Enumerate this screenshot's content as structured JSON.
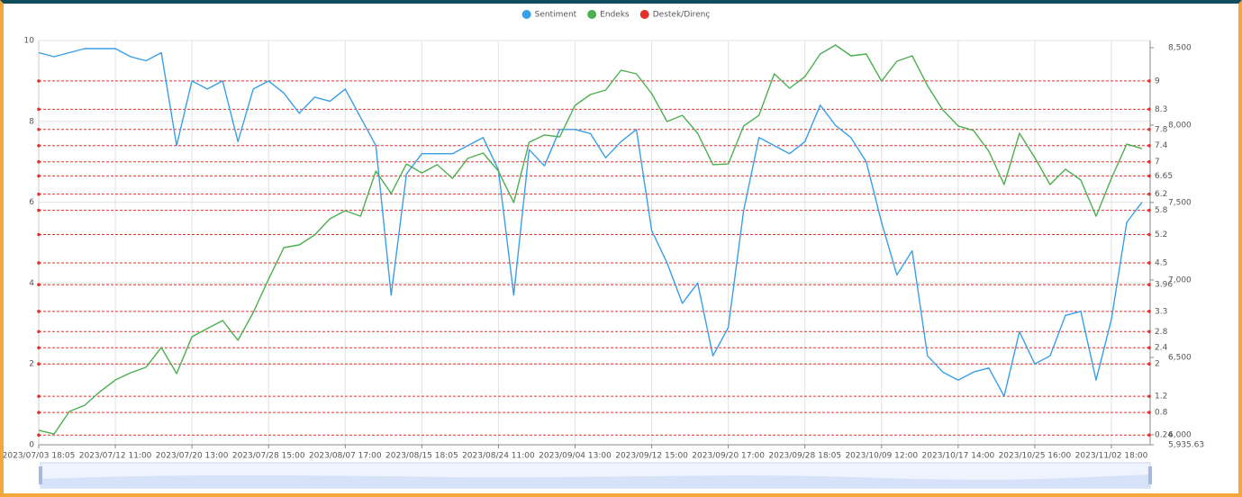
{
  "chart_data": {
    "type": "line",
    "categories": [
      "2023/07/03 18:05",
      null,
      null,
      null,
      null,
      "2023/07/12 11:00",
      null,
      null,
      null,
      null,
      "2023/07/20 13:00",
      null,
      null,
      null,
      null,
      "2023/07/28 15:00",
      null,
      null,
      null,
      null,
      "2023/08/07 17:00",
      null,
      null,
      null,
      null,
      "2023/08/15 18:05",
      null,
      null,
      null,
      null,
      "2023/08/24 11:00",
      null,
      null,
      null,
      null,
      "2023/09/04 13:00",
      null,
      null,
      null,
      null,
      "2023/09/12 15:00",
      null,
      null,
      null,
      null,
      "2023/09/20 17:00",
      null,
      null,
      null,
      null,
      "2023/09/28 18:05",
      null,
      null,
      null,
      null,
      "2023/10/09 12:00",
      null,
      null,
      null,
      null,
      "2023/10/17 14:00",
      null,
      null,
      null,
      null,
      "2023/10/25 16:00",
      null,
      null,
      null,
      null,
      "2023/11/02 18:00",
      null,
      null
    ],
    "series": [
      {
        "name": "Sentiment",
        "color": "#3a9fe6",
        "values": [
          9.7,
          9.6,
          9.7,
          9.8,
          9.8,
          9.8,
          9.6,
          9.5,
          9.7,
          7.4,
          9.0,
          8.8,
          9.0,
          7.5,
          8.8,
          9.0,
          8.7,
          8.2,
          8.6,
          8.5,
          8.8,
          8.1,
          7.4,
          3.7,
          6.7,
          7.2,
          7.2,
          7.2,
          7.4,
          7.6,
          6.8,
          3.7,
          7.3,
          6.9,
          7.8,
          7.8,
          7.7,
          7.1,
          7.5,
          7.8,
          5.3,
          4.5,
          3.5,
          4.0,
          2.2,
          2.9,
          5.8,
          7.6,
          7.4,
          7.2,
          7.5,
          8.4,
          7.9,
          7.6,
          7.0,
          5.5,
          4.2,
          4.8,
          2.2,
          1.8,
          1.6,
          1.8,
          1.9,
          1.2,
          2.8,
          2.0,
          2.2,
          3.2,
          3.3,
          1.6,
          3.1,
          5.5,
          6.0
        ]
      },
      {
        "name": "Endeks",
        "color": "#4caf50",
        "axis": "y2",
        "values": [
          6029,
          6005,
          6151,
          6191,
          6279,
          6354,
          6401,
          6436,
          6564,
          6395,
          6633,
          6686,
          6738,
          6610,
          6790,
          7005,
          7209,
          7226,
          7290,
          7395,
          7447,
          7412,
          7703,
          7558,
          7749,
          7691,
          7744,
          7656,
          7785,
          7819,
          7703,
          7500,
          7889,
          7936,
          7924,
          8127,
          8197,
          8226,
          8354,
          8331,
          8203,
          8023,
          8063,
          7947,
          7744,
          7749,
          7994,
          8063,
          8331,
          8238,
          8313,
          8459,
          8517,
          8447,
          8459,
          8284,
          8412,
          8447,
          8255,
          8098,
          7994,
          7965,
          7831,
          7616,
          7947,
          7790,
          7616,
          7715,
          7645,
          7412,
          7656,
          7877,
          7848
        ]
      }
    ],
    "reference_lines": {
      "name": "Destek/Direnç",
      "color": "#e5312a",
      "values": [
        9,
        8.3,
        7.8,
        7.4,
        7,
        6.65,
        6.2,
        5.8,
        5.2,
        4.5,
        3.96,
        3.3,
        2.8,
        2.4,
        2,
        1.2,
        0.8,
        0.24
      ]
    },
    "ylim": [
      0,
      10
    ],
    "yticks": [
      0,
      2,
      4,
      6,
      8,
      10
    ],
    "y2lim": [
      5935.63,
      8546
    ],
    "y2ticks": [
      {
        "value": 5935.63,
        "label": "5,935.63"
      },
      {
        "value": 6000,
        "label": "6,000"
      },
      {
        "value": 6500,
        "label": "6,500"
      },
      {
        "value": 7000,
        "label": "7,000"
      },
      {
        "value": 7500,
        "label": "7,500"
      },
      {
        "value": 8000,
        "label": "8,000"
      },
      {
        "value": 8500,
        "label": "8,500"
      }
    ],
    "grid": true,
    "legend": "top"
  }
}
